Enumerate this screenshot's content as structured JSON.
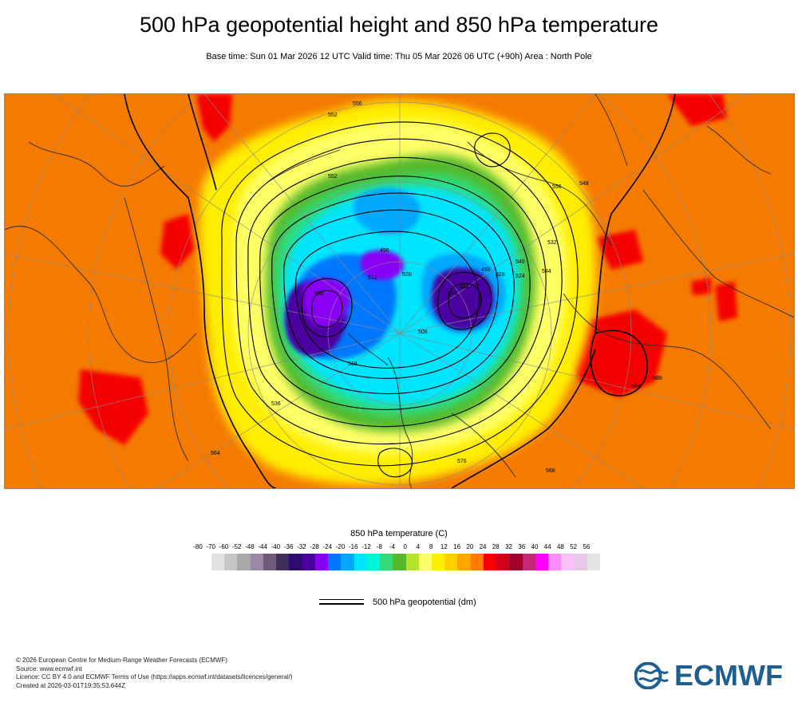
{
  "header": {
    "title": "500 hPa geopotential height and 850 hPa temperature",
    "subtitle": "Base time: Sun 01 Mar 2026 12 UTC Valid time: Thu 05 Mar 2026 06 UTC (+90h) Area : North Pole"
  },
  "map": {
    "contour_labels": [
      "552",
      "556",
      "536",
      "552",
      "520",
      "512",
      "516",
      "504",
      "488",
      "496",
      "508",
      "524",
      "532",
      "544",
      "556",
      "564",
      "576",
      "548",
      "584",
      "588",
      "568",
      "528",
      "540",
      "500",
      "484"
    ],
    "colors": {
      "background_warm": "#f57a00",
      "hot": "#f50000",
      "yellow": "#ffee00",
      "green": "#5ec23a",
      "cyan": "#00e5ff",
      "blue": "#0077ff",
      "purple": "#6a00c8",
      "contour": "#000000"
    }
  },
  "legend": {
    "title": "850 hPa temperature (C)",
    "ticks": [
      "-80",
      "-70",
      "-60",
      "-52",
      "-48",
      "-44",
      "-40",
      "-36",
      "-32",
      "-28",
      "-24",
      "-20",
      "-16",
      "-12",
      "-8",
      "-4",
      "0",
      "4",
      "8",
      "12",
      "16",
      "20",
      "24",
      "28",
      "32",
      "36",
      "40",
      "44",
      "48",
      "52",
      "56"
    ],
    "swatch_colors": [
      "#e2e2e2",
      "#c7c7c7",
      "#a8a8a8",
      "#9d86a6",
      "#6f5b78",
      "#3f2e5a",
      "#2d0b6e",
      "#4b00a0",
      "#8a00f5",
      "#0077ff",
      "#00a8ff",
      "#00e5ff",
      "#00f5d6",
      "#2fdb7a",
      "#55b92b",
      "#b6e32a",
      "#ffff66",
      "#ffee00",
      "#ffd000",
      "#ffa600",
      "#ff7a00",
      "#f50000",
      "#d10018",
      "#a30030",
      "#c72577",
      "#ff00ff",
      "#ff8cff",
      "#f7c0f7",
      "#e6c8e6",
      "#e4e4e4"
    ],
    "geopotential_label": "500 hPa geopotential (dm)"
  },
  "footer": {
    "line1": "© 2026 European Centre for Medium-Range Weather Forecasts (ECMWF)",
    "line2": "Source: www.ecmwf.int",
    "line3": "Licence: CC BY 4.0 and ECMWF Terms of Use (https://apps.ecmwf.int/datasets/licences/general/)",
    "line4": "Created at 2026-03-01T19:35:53.644Z"
  },
  "logo": {
    "text": "ECMWF",
    "color": "#1f5f8f"
  }
}
